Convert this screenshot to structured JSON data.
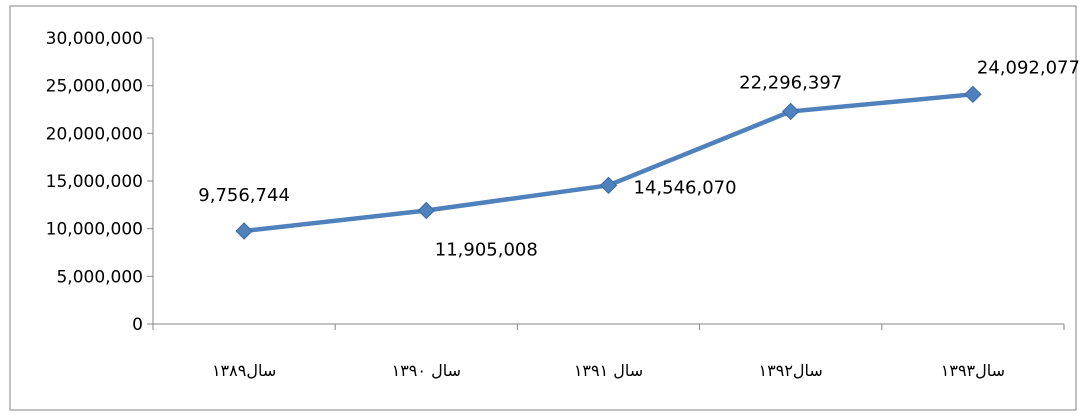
{
  "chart_data": {
    "type": "line",
    "categories": [
      "سال۱۳۸۹",
      "سال ۱۳۹۰",
      "سال ۱۳۹۱",
      "سال۱۳۹۲",
      "سال۱۳۹۳"
    ],
    "series": [
      {
        "values": [
          9756744,
          11905008,
          14546070,
          22296397,
          24092077
        ],
        "labels": [
          "9,756,744",
          "11,905,008",
          "14,546,070",
          "22,296,397",
          "24,092,077"
        ],
        "color": "#4f81bd"
      }
    ],
    "ylim": [
      0,
      30000000
    ],
    "yticks": [
      0,
      5000000,
      10000000,
      15000000,
      20000000,
      25000000,
      30000000
    ],
    "ytick_labels": [
      "0",
      "5,000,000",
      "10,000,000",
      "15,000,000",
      "20,000,000",
      "25,000,000",
      "30,000,000"
    ],
    "grid": false,
    "legend": "none",
    "border_color": "#868686",
    "axis_color": "#868686"
  }
}
